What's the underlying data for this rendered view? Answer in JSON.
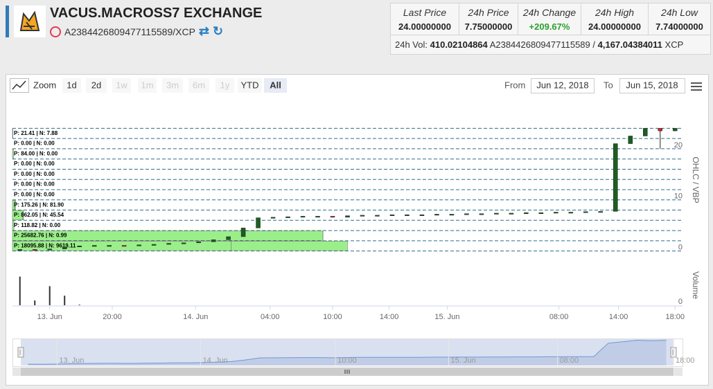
{
  "header": {
    "title": "VACUS.MACROSS7 EXCHANGE",
    "pair": "A2384426809477115589/XCP"
  },
  "stats": {
    "columns": [
      {
        "label": "Last Price",
        "value": "24.00000000"
      },
      {
        "label": "24h Price",
        "value": "7.75000000"
      },
      {
        "label": "24h Change",
        "value": "+209.67%"
      },
      {
        "label": "24h High",
        "value": "24.00000000"
      },
      {
        "label": "24h Low",
        "value": "7.74000000"
      }
    ],
    "volume": {
      "label": "24h Vol:",
      "base_amount": "410.02104864",
      "base_asset": "A2384426809477115589 /",
      "quote_amount": "4,167.04384011",
      "quote_asset": "XCP"
    }
  },
  "toolbar": {
    "zoom_label": "Zoom",
    "ranges": [
      {
        "label": "1d",
        "enabled": true
      },
      {
        "label": "2d",
        "enabled": true
      },
      {
        "label": "1w",
        "enabled": false
      },
      {
        "label": "1m",
        "enabled": false
      },
      {
        "label": "3m",
        "enabled": false
      },
      {
        "label": "6m",
        "enabled": false
      },
      {
        "label": "1y",
        "enabled": false
      },
      {
        "label": "YTD",
        "enabled": true
      },
      {
        "label": "All",
        "enabled": true
      }
    ],
    "selected_index": 8,
    "from_label": "From",
    "from": "Jun 12, 2018",
    "to_label": "To",
    "to": "Jun 15, 2018"
  },
  "chart_data": {
    "type": "candlestick",
    "ordinal": true,
    "open": [
      0.1,
      0.3,
      0.2,
      0.4,
      0.8,
      1.0,
      1.1,
      1.1,
      1.0,
      1.2,
      1.3,
      1.5,
      1.6,
      1.8,
      2.2,
      2.8,
      4.5,
      6.5,
      6.6,
      6.7,
      6.8,
      6.8,
      6.6,
      6.9,
      7.0,
      7.0,
      7.1,
      7.1,
      7.1,
      7.2,
      7.2,
      7.3,
      7.3,
      7.4,
      7.4,
      7.5,
      7.5,
      7.6,
      7.6,
      7.7,
      7.75,
      21.0,
      22.5,
      24.0,
      23.5
    ],
    "high": [
      0.3,
      0.3,
      0.4,
      0.8,
      1.0,
      1.1,
      1.1,
      1.1,
      1.2,
      1.3,
      1.5,
      1.6,
      1.8,
      2.2,
      2.8,
      4.5,
      6.5,
      6.6,
      6.7,
      6.8,
      6.8,
      6.8,
      6.9,
      7.0,
      7.0,
      7.1,
      7.1,
      7.1,
      7.2,
      7.2,
      7.3,
      7.3,
      7.4,
      7.4,
      7.5,
      7.5,
      7.6,
      7.6,
      7.7,
      7.74,
      21.0,
      22.5,
      24.0,
      24.0,
      24.0
    ],
    "low": [
      0.1,
      0.2,
      0.2,
      0.4,
      0.8,
      1.0,
      1.1,
      1.0,
      1.0,
      1.2,
      1.3,
      1.5,
      1.6,
      1.8,
      2.2,
      2.8,
      4.5,
      6.5,
      6.6,
      6.7,
      6.8,
      6.6,
      6.6,
      6.9,
      7.0,
      7.0,
      7.1,
      7.1,
      7.1,
      7.2,
      7.2,
      7.3,
      7.3,
      7.4,
      7.4,
      7.5,
      7.5,
      7.6,
      7.6,
      7.7,
      7.74,
      21.0,
      22.5,
      20.0,
      23.5
    ],
    "close": [
      0.3,
      0.2,
      0.4,
      0.8,
      1.0,
      1.1,
      1.1,
      1.0,
      1.2,
      1.3,
      1.5,
      1.6,
      1.8,
      2.2,
      2.8,
      4.5,
      6.5,
      6.6,
      6.7,
      6.8,
      6.8,
      6.6,
      6.9,
      7.0,
      7.0,
      7.1,
      7.1,
      7.1,
      7.2,
      7.2,
      7.3,
      7.3,
      7.4,
      7.4,
      7.5,
      7.5,
      7.6,
      7.6,
      7.7,
      7.74,
      21.0,
      22.5,
      24.0,
      23.5,
      24.0
    ],
    "volume": [
      9000,
      1500,
      6000,
      3000,
      200,
      0,
      0,
      0,
      0,
      0,
      0,
      0,
      0,
      0,
      0,
      0,
      0,
      0,
      0,
      0,
      0,
      0,
      0,
      0,
      0,
      0,
      0,
      0,
      0,
      0,
      0,
      0,
      0,
      0,
      0,
      0,
      0,
      0,
      0,
      0,
      0,
      0,
      0,
      0,
      0
    ],
    "up_color": "#1b5e20",
    "down_color": "#c62828",
    "volume_color": "#333333",
    "xlim": [
      -0.5,
      44.5
    ],
    "ylim": [
      -1,
      25
    ],
    "yticks": [
      0,
      10,
      20
    ],
    "volume_ylim": [
      0,
      10000
    ],
    "volume_yticks": [
      0
    ],
    "y_axis_title": "OHLC / VBP",
    "volume_axis_title": "Volume",
    "xticks": [
      {
        "value": 2.0,
        "label": "13. Jun"
      },
      {
        "value": 6.2,
        "label": "20:00"
      },
      {
        "value": 11.8,
        "label": "14. Jun"
      },
      {
        "value": 16.8,
        "label": "04:00"
      },
      {
        "value": 21.0,
        "label": "10:00"
      },
      {
        "value": 24.8,
        "label": "14:00"
      },
      {
        "value": 28.7,
        "label": "15. Jun"
      },
      {
        "value": 36.2,
        "label": "08:00"
      },
      {
        "value": 40.2,
        "label": "14:00"
      },
      {
        "value": 44.0,
        "label": "18:00"
      }
    ],
    "navigator_xticks": [
      {
        "value": 2.0,
        "label": "13. Jun"
      },
      {
        "value": 11.9,
        "label": "14. Jun"
      },
      {
        "value": 21.2,
        "label": "10:00"
      },
      {
        "value": 29.0,
        "label": "15. Jun"
      },
      {
        "value": 36.5,
        "label": "08:00"
      },
      {
        "value": 44.5,
        "label": "18:00"
      }
    ],
    "vbp": {
      "zones": [
        0,
        2,
        4,
        6,
        8,
        10,
        12,
        14,
        16,
        18,
        20,
        22,
        24
      ],
      "positive": [
        18095.88,
        25682.76,
        118.82,
        862.05,
        175.26,
        0,
        0,
        0,
        0,
        84.0,
        0,
        21.41
      ],
      "negative": [
        9619.11,
        0.99,
        0,
        45.54,
        81.9,
        0,
        0,
        0,
        0,
        0,
        0,
        7.88
      ],
      "value_labels": [
        "P: 18095.88 | N: 9619.11",
        "P: 25682.76 | N: 0.99",
        "P: 118.82 | N: 0.00",
        "P: 862.05 | N: 45.54",
        "P: 175.26 | N: 81.90",
        "P: 0.00 | N: 0.00",
        "P: 0.00 | N: 0.00",
        "P: 0.00 | N: 0.00",
        "P: 0.00 | N: 0.00",
        "P: 84.00 | N: 0.00",
        "P: 0.00 | N: 0.00",
        "P: 21.41 | N: 7.88"
      ],
      "color": "#90ed7d",
      "xlim": [
        0,
        55430
      ]
    }
  }
}
